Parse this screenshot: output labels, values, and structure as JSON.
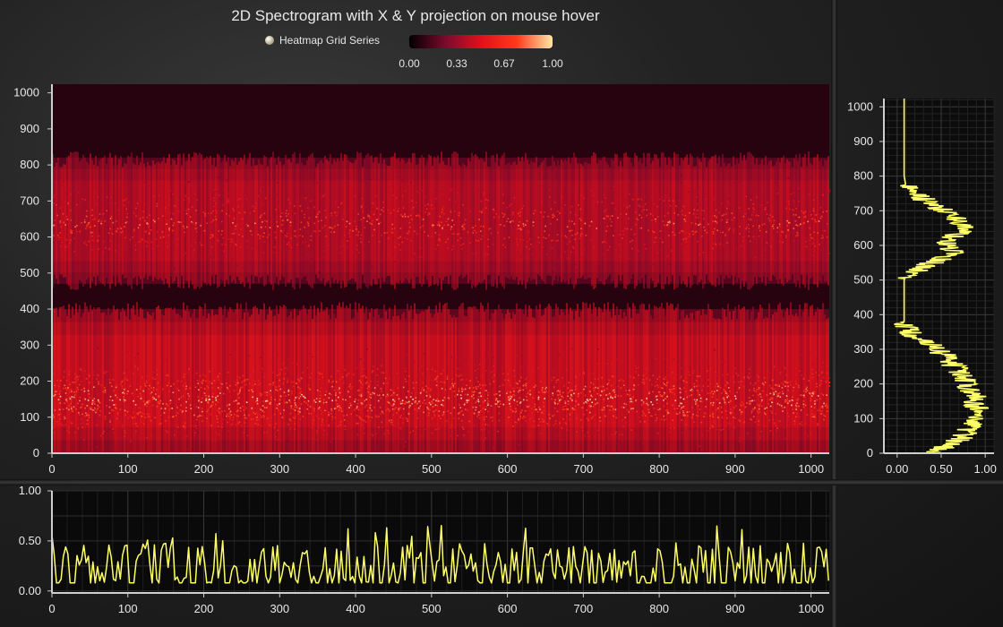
{
  "title": "2D Spectrogram with X & Y projection on mouse hover",
  "legend": {
    "series_name": "Heatmap Grid Series",
    "colorbar_ticks": [
      "0.00",
      "0.33",
      "0.67",
      "1.00"
    ],
    "palette": [
      "#000000",
      "#7a0a2e",
      "#e0101c",
      "#ff3a1a",
      "#ffe6a8"
    ]
  },
  "chart_data": [
    {
      "type": "heatmap",
      "title": "2D Spectrogram with X & Y projection on mouse hover",
      "xlim": [
        0,
        1024
      ],
      "ylim": [
        0,
        1024
      ],
      "x_ticks": [
        "0",
        "100",
        "200",
        "300",
        "400",
        "500",
        "600",
        "700",
        "800",
        "900",
        "1000"
      ],
      "y_ticks": [
        "0",
        "100",
        "200",
        "300",
        "400",
        "500",
        "600",
        "700",
        "800",
        "900",
        "1000"
      ],
      "value_range": [
        0,
        1
      ],
      "background_value": 0.08,
      "bands": [
        {
          "y_range": [
            0,
            400
          ],
          "peak_y": 150,
          "peak_value": 0.85
        },
        {
          "y_range": [
            470,
            820
          ],
          "peak_y": 640,
          "peak_value": 0.75
        }
      ],
      "grid": false
    },
    {
      "type": "line",
      "name": "y-projection",
      "orientation": "vertical",
      "color": "#ffff66",
      "xlim": [
        -0.15,
        1.1
      ],
      "ylim": [
        0,
        1024
      ],
      "x_ticks": [
        "0.00",
        "0.50",
        "1.00"
      ],
      "y_ticks": [
        "0",
        "100",
        "200",
        "300",
        "400",
        "500",
        "600",
        "700",
        "800",
        "900",
        "1000"
      ],
      "profile": {
        "y": [
          0,
          20,
          40,
          60,
          80,
          100,
          120,
          140,
          160,
          180,
          200,
          220,
          240,
          260,
          280,
          300,
          320,
          340,
          360,
          370,
          380,
          400,
          420,
          460,
          500,
          510,
          520,
          540,
          560,
          580,
          600,
          620,
          640,
          660,
          680,
          700,
          720,
          740,
          760,
          770,
          800,
          900,
          1000,
          1024
        ],
        "x": [
          0.35,
          0.55,
          0.7,
          0.8,
          0.85,
          0.88,
          0.9,
          0.9,
          0.88,
          0.85,
          0.8,
          0.75,
          0.68,
          0.62,
          0.55,
          0.45,
          0.35,
          0.2,
          0.12,
          0.08,
          0.08,
          0.08,
          0.08,
          0.08,
          0.08,
          0.1,
          0.15,
          0.3,
          0.5,
          0.62,
          0.58,
          0.6,
          0.72,
          0.75,
          0.65,
          0.55,
          0.4,
          0.25,
          0.15,
          0.1,
          0.08,
          0.08,
          0.08,
          0.08
        ]
      },
      "grid": true
    },
    {
      "type": "line",
      "name": "x-projection",
      "color": "#ffff66",
      "xlim": [
        0,
        1024
      ],
      "ylim": [
        -0.02,
        1.0
      ],
      "x_ticks": [
        "0",
        "100",
        "200",
        "300",
        "400",
        "500",
        "600",
        "700",
        "800",
        "900",
        "1000"
      ],
      "y_ticks": [
        "0.00",
        "0.50",
        "1.00"
      ],
      "baseline": 0.08,
      "peak_range": [
        0.25,
        0.66
      ],
      "grid": true
    }
  ]
}
